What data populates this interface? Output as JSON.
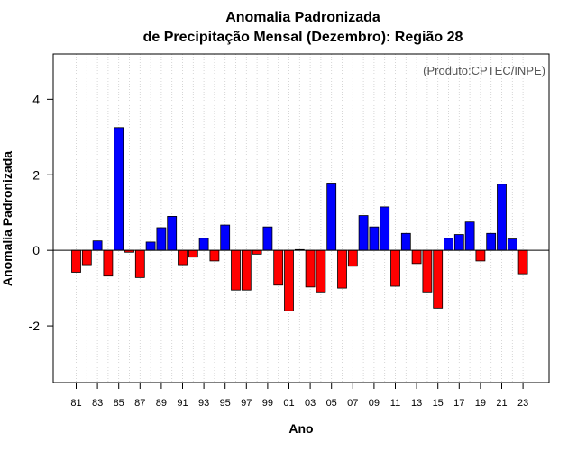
{
  "chart_data": {
    "type": "bar",
    "title": "Anomalia Padronizada",
    "subtitle": "de Precipitação Mensal (Dezembro): Região 28",
    "xlabel": "Ano",
    "ylabel": "Anomalia Padronizada",
    "annotation": "(Produto:CPTEC/INPE)",
    "ylim": [
      -3.5,
      5.2
    ],
    "yticks": [
      -2,
      0,
      2,
      4
    ],
    "grid": "vertical dotted",
    "positive_color": "#0000ff",
    "negative_color": "#ff0000",
    "categories": [
      "81",
      "82",
      "83",
      "84",
      "85",
      "86",
      "87",
      "88",
      "89",
      "90",
      "91",
      "92",
      "93",
      "94",
      "95",
      "96",
      "97",
      "98",
      "99",
      "00",
      "01",
      "02",
      "03",
      "04",
      "05",
      "06",
      "07",
      "08",
      "09",
      "10",
      "11",
      "12",
      "13",
      "14",
      "15",
      "16",
      "17",
      "18",
      "19",
      "20",
      "21",
      "22",
      "23"
    ],
    "xtick_labels": [
      "81",
      "83",
      "85",
      "87",
      "89",
      "91",
      "93",
      "95",
      "97",
      "99",
      "01",
      "03",
      "05",
      "07",
      "09",
      "11",
      "13",
      "15",
      "17",
      "19",
      "21",
      "23"
    ],
    "values": [
      -0.58,
      -0.38,
      0.25,
      -0.68,
      3.25,
      -0.05,
      -0.72,
      0.22,
      0.6,
      0.9,
      -0.38,
      -0.18,
      0.32,
      -0.28,
      0.67,
      -1.05,
      -1.05,
      -0.1,
      0.62,
      -0.92,
      -1.6,
      0.02,
      -0.97,
      -1.1,
      1.78,
      -1.0,
      -0.42,
      0.92,
      0.62,
      1.15,
      -0.95,
      0.45,
      -0.35,
      -1.1,
      -1.53,
      0.32,
      0.42,
      0.75,
      -0.28,
      0.45,
      1.75,
      0.3,
      -0.62
    ]
  }
}
